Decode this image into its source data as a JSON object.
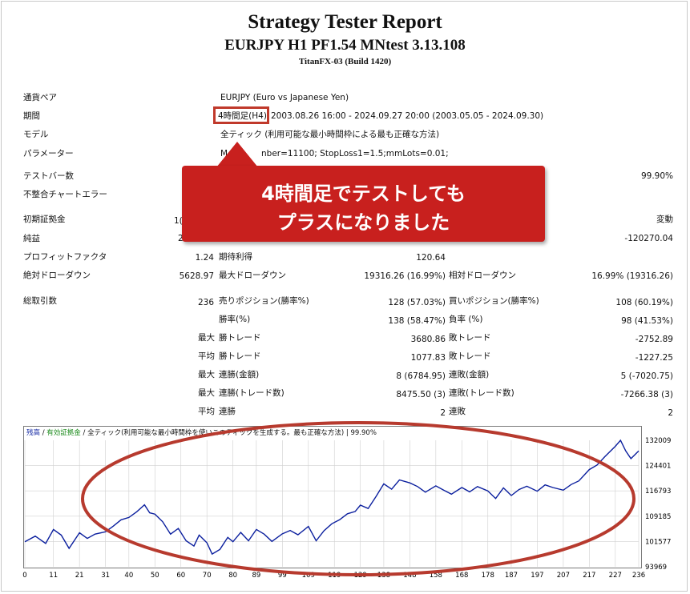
{
  "report": {
    "title": "Strategy Tester Report",
    "subtitle": "EURJPY H1 PF1.54 MNtest 3.13.108",
    "server": "TitanFX-03 (Build 1420)"
  },
  "info": {
    "symbol_label": "通貨ペア",
    "symbol_value": "EURJPY (Euro vs Japanese Yen)",
    "period_label": "期間",
    "period_tf": "4時間足(H4)",
    "period_value": "2003.08.26 16:00 - 2024.09.27 20:00 (2003.05.05 - 2024.09.30)",
    "model_label": "モデル",
    "model_value": "全ティック (利用可能な最小時間枠による最も正確な方法)",
    "params_label": "パラメーター",
    "params_value_start": "M",
    "params_value_end": "nber=11100; StopLoss1=1.5;mmLots=0.01;",
    "bars_label": "テストバー数",
    "quality_value": "99.90%",
    "mismatch_label": "不整合チャートエラー"
  },
  "stats": {
    "deposit_label": "初期証拠金",
    "deposit_value_partial": "1(",
    "spread_label_partial": "変動",
    "net_label": "純益",
    "net_value_partial": "2",
    "gross_loss_value": "-120270.04",
    "pf_label": "プロフィットファクタ",
    "pf_value": "1.24",
    "expected_label": "期待利得",
    "expected_value": "120.64",
    "abs_dd_label": "絶対ドローダウン",
    "abs_dd_value": "5628.97",
    "max_dd_label": "最大ドローダウン",
    "max_dd_value": "19316.26 (16.99%)",
    "rel_dd_label": "相対ドローダウン",
    "rel_dd_value": "16.99% (19316.26)",
    "total_trades_label": "総取引数",
    "total_trades_value": "236",
    "short_label": "売りポジション(勝率%)",
    "short_value": "128 (57.03%)",
    "long_label": "買いポジション(勝率%)",
    "long_value": "108 (60.19%)",
    "win_label": "勝率(%)",
    "win_value": "138 (58.47%)",
    "loss_label": "負率 (%)",
    "loss_value": "98 (41.53%)",
    "max_word": "最大",
    "avg_word": "平均",
    "largest_win_label": "勝トレード",
    "largest_win_value": "3680.86",
    "largest_loss_label": "敗トレード",
    "largest_loss_value": "-2752.89",
    "avg_win_label": "勝トレード",
    "avg_win_value": "1077.83",
    "avg_loss_label": "敗トレード",
    "avg_loss_value": "-1227.25",
    "max_cons_win_label": "連勝(金額)",
    "max_cons_win_value": "8 (6784.95)",
    "max_cons_loss_label": "連敗(金額)",
    "max_cons_loss_value": "5 (-7020.75)",
    "max_cons_profit_label": "連勝(トレード数)",
    "max_cons_profit_value": "8475.50 (3)",
    "max_cons_lossamt_label": "連敗(トレード数)",
    "max_cons_lossamt_value": "-7266.38 (3)",
    "avg_cons_win_label": "連勝",
    "avg_cons_win_value": "2",
    "avg_cons_loss_label": "連敗",
    "avg_cons_loss_value": "2"
  },
  "callout": {
    "line1": "4時間足でテストしても",
    "line2": "プラスになりました",
    "color": "#c8201e"
  },
  "chart_legend": {
    "balance": "残高",
    "equity": "有効証拠金",
    "model_partial_a": "全ティック(利用可能な最小時間枠を使い",
    "model_partial_b": "このティックを生成する。最も正確な方法)",
    "quality": "99.90%"
  },
  "chart_data": {
    "type": "line",
    "x_ticks": [
      "0",
      "11",
      "21",
      "31",
      "40",
      "50",
      "60",
      "70",
      "80",
      "89",
      "99",
      "109",
      "119",
      "129",
      "138",
      "148",
      "158",
      "168",
      "178",
      "187",
      "197",
      "207",
      "217",
      "227",
      "236"
    ],
    "y_ticks": [
      "132009",
      "124401",
      "116793",
      "109185",
      "101577",
      "93969"
    ],
    "ylim": [
      93969,
      132009
    ],
    "xlim": [
      0,
      236
    ],
    "series": [
      {
        "color": "#0b1f9e",
        "x": [
          0,
          4,
          8,
          11,
          14,
          17,
          21,
          24,
          27,
          31,
          34,
          37,
          40,
          43,
          46,
          48,
          50,
          53,
          56,
          59,
          62,
          65,
          67,
          70,
          72,
          75,
          78,
          80,
          83,
          86,
          89,
          92,
          95,
          99,
          102,
          105,
          109,
          112,
          115,
          118,
          121,
          124,
          127,
          129,
          132,
          135,
          138,
          141,
          144,
          148,
          151,
          154,
          158,
          161,
          164,
          168,
          171,
          174,
          178,
          181,
          184,
          187,
          190,
          193,
          197,
          200,
          203,
          207,
          210,
          213,
          217,
          220,
          223,
          227,
          229,
          231,
          233,
          236
        ],
        "y": [
          101500,
          103200,
          101000,
          105200,
          103500,
          99500,
          104200,
          102500,
          103800,
          104500,
          106200,
          108100,
          108800,
          110500,
          112600,
          110200,
          109800,
          107500,
          103800,
          105500,
          101800,
          100200,
          103500,
          101200,
          97800,
          99200,
          102800,
          101500,
          104300,
          101800,
          105200,
          103800,
          101600,
          103900,
          104900,
          103600,
          106100,
          101800,
          104800,
          106900,
          108100,
          109900,
          110600,
          112500,
          111500,
          115100,
          118900,
          117300,
          120100,
          119200,
          118100,
          116400,
          118300,
          117000,
          115800,
          117800,
          116500,
          118100,
          116800,
          114500,
          117700,
          115400,
          117200,
          118200,
          116700,
          118600,
          117800,
          117000,
          118700,
          119800,
          123200,
          124600,
          127100,
          130200,
          132000,
          128800,
          126500,
          128800
        ]
      }
    ]
  }
}
